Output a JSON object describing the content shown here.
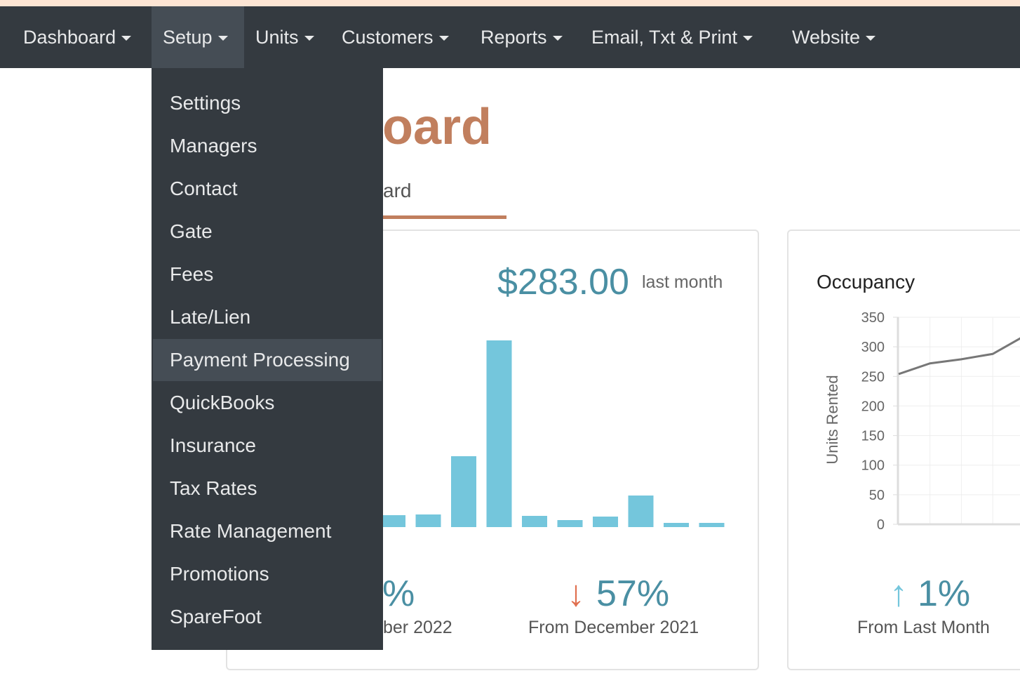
{
  "navbar": {
    "items": [
      "Dashboard",
      "Setup",
      "Units",
      "Customers",
      "Reports",
      "Email, Txt & Print",
      "Website"
    ]
  },
  "dropdown": {
    "items": [
      "Settings",
      "Managers",
      "Contact",
      "Gate",
      "Fees",
      "Late/Lien",
      "Payment Processing",
      "QuickBooks",
      "Insurance",
      "Tax Rates",
      "Rate Management",
      "Promotions",
      "SpareFoot"
    ]
  },
  "page": {
    "title": "oard",
    "tab": "ard"
  },
  "revenue_card": {
    "amount": "$283.00",
    "amount_note": "last month",
    "stat_left": {
      "value": "%",
      "caption": "ber 2022"
    },
    "stat_right": {
      "value": "57%",
      "caption": "From December 2021"
    },
    "chart": {
      "type": "bar",
      "values": [
        17,
        18,
        101,
        266,
        16,
        10,
        15,
        45,
        6,
        6
      ],
      "ylim": [
        0,
        300
      ],
      "color": "#74c6dc"
    }
  },
  "occupancy_card": {
    "title": "Occupancy",
    "stat": {
      "value": "1%",
      "caption": "From Last Month"
    },
    "chart": {
      "type": "line",
      "ylabel": "Units Rented",
      "categories": [
        null,
        null,
        null,
        null,
        null
      ],
      "values": [
        254,
        272,
        279,
        288,
        318
      ],
      "ylim": [
        0,
        350
      ],
      "yticks": [
        0,
        50,
        100,
        150,
        200,
        250,
        300,
        350
      ],
      "grid": true,
      "color": "#777777"
    }
  }
}
